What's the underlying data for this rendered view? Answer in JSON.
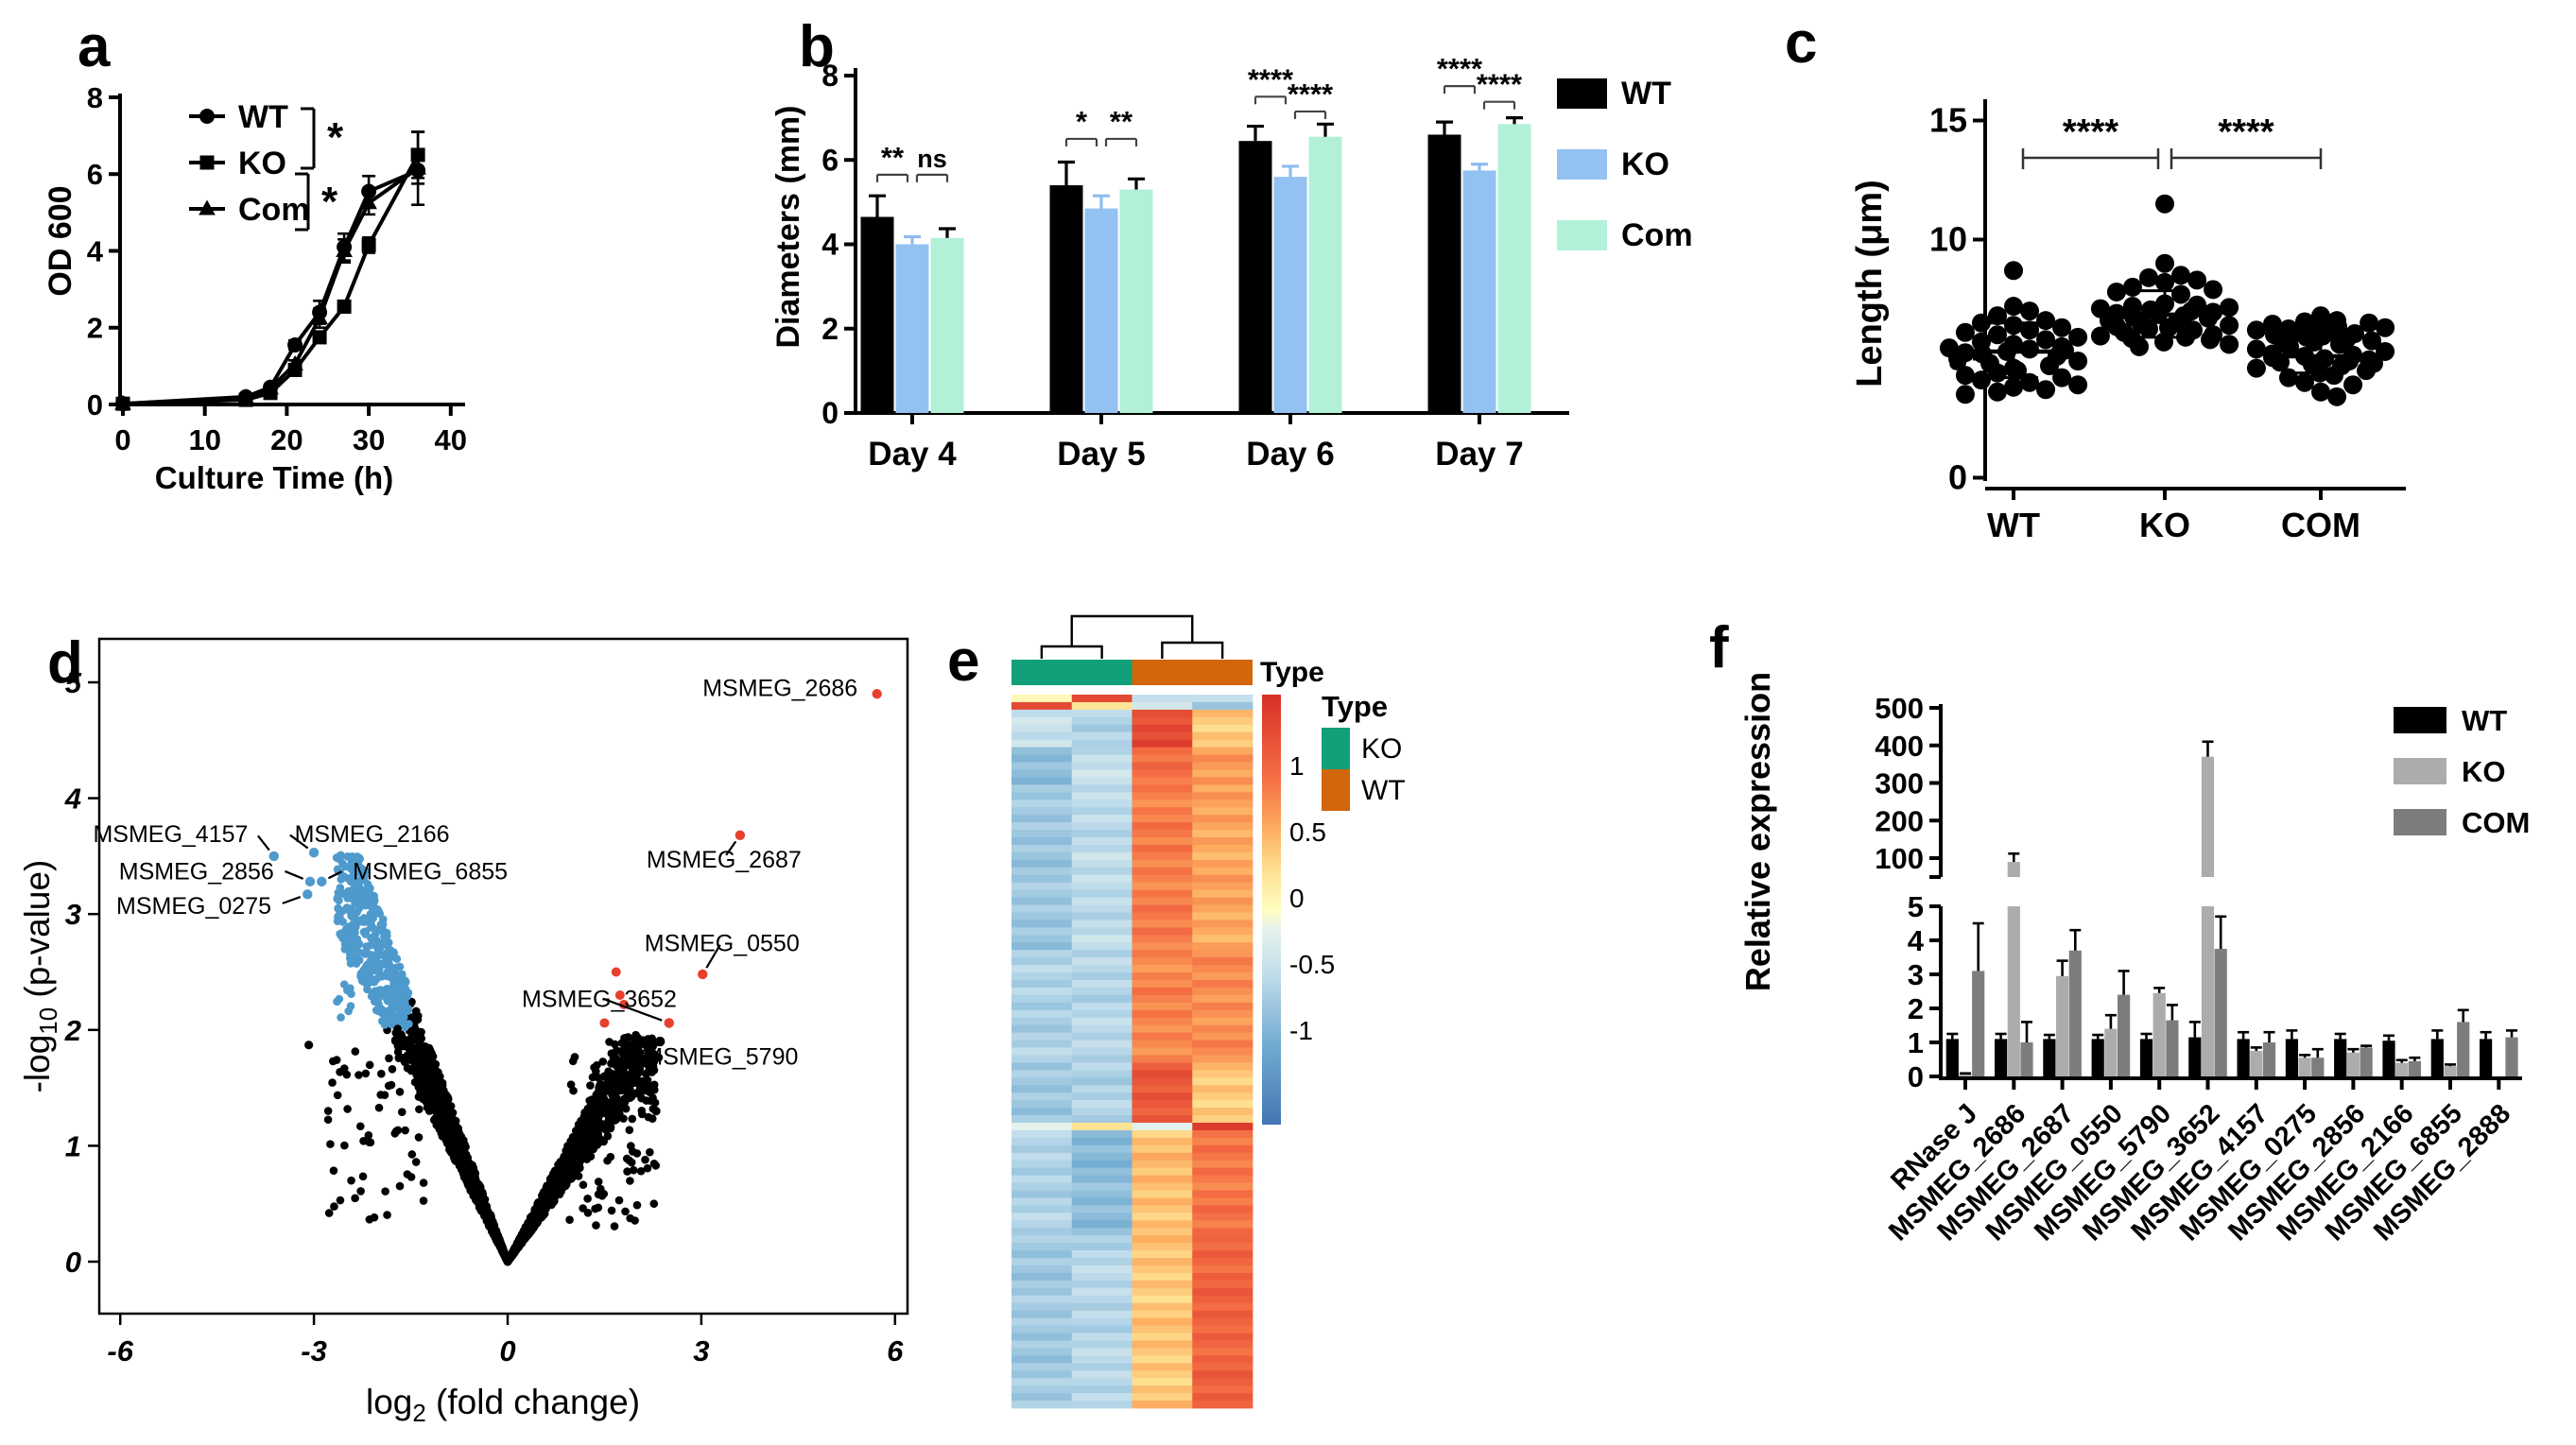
{
  "figure": {
    "background": "#ffffff",
    "panels": {
      "a": {
        "letter": "a"
      },
      "b": {
        "letter": "b"
      },
      "c": {
        "letter": "c"
      },
      "d": {
        "letter": "d"
      },
      "e": {
        "letter": "e"
      },
      "f": {
        "letter": "f"
      }
    }
  },
  "chart_data": {
    "a": {
      "type": "line",
      "xlabel": "Culture Time (h)",
      "ylabel": "OD 600",
      "xlim": [
        0,
        41
      ],
      "ylim": [
        0,
        8
      ],
      "xticks": [
        0,
        10,
        20,
        30,
        40
      ],
      "yticks": [
        0,
        2,
        4,
        6,
        8
      ],
      "x": [
        0,
        15,
        18,
        21,
        24,
        27,
        30,
        36
      ],
      "series": [
        {
          "name": "WT",
          "marker": "circle",
          "color": "#000000",
          "values": [
            0.02,
            0.2,
            0.45,
            1.55,
            2.4,
            4.1,
            5.55,
            6.1
          ],
          "errors": [
            0,
            0.04,
            0.06,
            0.12,
            0.3,
            0.35,
            0.4,
            0.35
          ]
        },
        {
          "name": "KO",
          "marker": "square",
          "color": "#000000",
          "values": [
            0.02,
            0.12,
            0.3,
            0.9,
            1.75,
            2.55,
            4.15,
            6.5
          ],
          "errors": [
            0,
            0.03,
            0.05,
            0.08,
            0.12,
            0.15,
            0.2,
            0.6
          ]
        },
        {
          "name": "Com",
          "marker": "triangle",
          "color": "#000000",
          "values": [
            0.02,
            0.18,
            0.42,
            1.05,
            2.25,
            4.0,
            5.25,
            6.15
          ],
          "errors": [
            0,
            0.04,
            0.05,
            0.1,
            0.25,
            0.3,
            0.3,
            0.95
          ]
        }
      ],
      "legend_significance": [
        {
          "pair": [
            "WT",
            "KO"
          ],
          "label": "*"
        },
        {
          "pair": [
            "KO",
            "Com"
          ],
          "label": "*"
        }
      ]
    },
    "b": {
      "type": "bar",
      "ylabel": "Diameters (mm)",
      "ylim": [
        0,
        8
      ],
      "yticks": [
        0,
        2,
        4,
        6,
        8
      ],
      "categories": [
        "Day 4",
        "Day 5",
        "Day 6",
        "Day 7"
      ],
      "series": [
        {
          "name": "WT",
          "color": "#000000",
          "errorColor": "#000000",
          "values": [
            4.65,
            5.4,
            6.45,
            6.6
          ],
          "errors": [
            0.5,
            0.55,
            0.35,
            0.3
          ]
        },
        {
          "name": "KO",
          "color": "#93C1F2",
          "errorColor": "#8FBCEE",
          "values": [
            4.0,
            4.85,
            5.6,
            5.75
          ],
          "errors": [
            0.18,
            0.3,
            0.25,
            0.15
          ]
        },
        {
          "name": "Com",
          "color": "#B2F1D7",
          "errorColor": "#000000",
          "values": [
            4.15,
            5.3,
            6.55,
            6.85
          ],
          "errors": [
            0.22,
            0.25,
            0.3,
            0.15
          ]
        }
      ],
      "significance": [
        {
          "wt_ko": "**",
          "ko_com": "ns",
          "h1": 5.65,
          "h2": 5.65
        },
        {
          "wt_ko": "*",
          "ko_com": "**",
          "h1": 6.5,
          "h2": 6.5
        },
        {
          "wt_ko": "****",
          "ko_com": "****",
          "h1": 7.5,
          "h2": 7.15
        },
        {
          "wt_ko": "****",
          "ko_com": "****",
          "h1": 7.75,
          "h2": 7.38
        }
      ]
    },
    "c": {
      "type": "scatter",
      "ylabel": "Length (μm)",
      "ylim": [
        0,
        15
      ],
      "yticks": [
        0,
        5,
        10,
        15
      ],
      "categories": [
        "WT",
        "KO",
        "COM"
      ],
      "points": {
        "WT": [
          8.7,
          7.2,
          7.0,
          6.8,
          6.6,
          6.5,
          6.4,
          6.3,
          6.2,
          6.1,
          6.0,
          5.9,
          5.8,
          5.7,
          5.6,
          5.5,
          5.45,
          5.4,
          5.35,
          5.3,
          5.25,
          5.2,
          5.1,
          5.0,
          4.9,
          4.8,
          4.7,
          4.6,
          4.5,
          4.4,
          4.3,
          4.2,
          4.1,
          4.0,
          3.9,
          3.8,
          3.7,
          3.6,
          3.5
        ],
        "KO": [
          11.5,
          9.0,
          8.5,
          8.4,
          8.3,
          8.2,
          8.0,
          7.9,
          7.8,
          7.7,
          7.3,
          7.25,
          7.2,
          7.15,
          7.1,
          7.05,
          7.0,
          6.95,
          6.9,
          6.85,
          6.8,
          6.75,
          6.7,
          6.6,
          6.5,
          6.45,
          6.4,
          6.35,
          6.3,
          6.25,
          6.2,
          6.1,
          6.0,
          5.95,
          5.9,
          5.85,
          5.8,
          5.7,
          5.6,
          5.5
        ],
        "COM": [
          6.8,
          6.6,
          6.55,
          6.5,
          6.45,
          6.4,
          6.35,
          6.3,
          6.25,
          6.2,
          6.15,
          6.1,
          6.05,
          6.0,
          5.95,
          5.9,
          5.85,
          5.8,
          5.75,
          5.7,
          5.6,
          5.5,
          5.4,
          5.3,
          5.2,
          5.15,
          5.1,
          5.05,
          5.0,
          4.95,
          4.9,
          4.85,
          4.8,
          4.75,
          4.7,
          4.6,
          4.5,
          4.4,
          4.3,
          4.2,
          4.0,
          3.9,
          3.6,
          3.4
        ]
      },
      "mean_sd": {
        "WT": [
          5.3,
          6.5,
          4.2
        ],
        "KO": [
          6.85,
          7.85,
          5.9
        ],
        "COM": [
          5.1,
          5.8,
          4.4
        ]
      },
      "significance": [
        {
          "pair": [
            "WT",
            "KO"
          ],
          "label": "****"
        },
        {
          "pair": [
            "KO",
            "COM"
          ],
          "label": "****"
        }
      ]
    },
    "d": {
      "type": "scatter",
      "variant": "volcano",
      "xlabel_parts": [
        "log",
        "2",
        " (fold change)"
      ],
      "ylabel_parts": [
        "-log",
        "10",
        " (p-value)"
      ],
      "xticks": [
        -6,
        -3,
        0,
        3,
        6
      ],
      "yticks": [
        0,
        1,
        2,
        3,
        4,
        5
      ],
      "colors": {
        "up": "#E8402C",
        "down": "#4E9ACD",
        "ns": "#000000"
      },
      "labeled_points": [
        {
          "gene": "MSMEG_2686",
          "x": 5.72,
          "y": 4.9,
          "color": "#E8402C",
          "label": [
            5.42,
            4.88
          ],
          "anchor": "end",
          "leader": false
        },
        {
          "gene": "MSMEG_2687",
          "x": 3.6,
          "y": 3.68,
          "color": "#E8402C",
          "label": [
            3.35,
            3.4
          ],
          "anchor": "middle",
          "leader": true
        },
        {
          "gene": "MSMEG_0550",
          "x": 3.02,
          "y": 2.48,
          "color": "#E8402C",
          "label": [
            3.32,
            2.68
          ],
          "anchor": "middle",
          "leader": true
        },
        {
          "gene": "MSMEG_3652",
          "x": 2.5,
          "y": 2.06,
          "color": "#E8402C",
          "label": [
            1.42,
            2.2
          ],
          "anchor": "middle",
          "leader": true
        },
        {
          "gene": "MSMEG_5790",
          "x": 2.36,
          "y": 1.9,
          "color": "#000000",
          "label": [
            2.1,
            1.7
          ],
          "anchor": "start",
          "leader": true
        },
        {
          "gene": "MSMEG_4157",
          "x": -3.62,
          "y": 3.5,
          "color": "#4E9ACD",
          "label": [
            -4.02,
            3.62
          ],
          "anchor": "end",
          "leader": true
        },
        {
          "gene": "MSMEG_2166",
          "x": -3.0,
          "y": 3.53,
          "color": "#4E9ACD",
          "label": [
            -3.3,
            3.62
          ],
          "anchor": "start",
          "leader": true
        },
        {
          "gene": "MSMEG_2856",
          "x": -3.06,
          "y": 3.28,
          "color": "#4E9ACD",
          "label": [
            -3.62,
            3.3
          ],
          "anchor": "end",
          "leader": true
        },
        {
          "gene": "MSMEG_6855",
          "x": -2.88,
          "y": 3.28,
          "color": "#4E9ACD",
          "label": [
            -2.4,
            3.3
          ],
          "anchor": "start",
          "leader": true
        },
        {
          "gene": "MSMEG_0275",
          "x": -3.1,
          "y": 3.17,
          "color": "#4E9ACD",
          "label": [
            -3.66,
            3.0
          ],
          "anchor": "end",
          "leader": true
        }
      ],
      "extra_red_points": [
        [
          1.68,
          2.5
        ],
        [
          1.74,
          2.3
        ],
        [
          1.8,
          2.22
        ],
        [
          1.5,
          2.06
        ]
      ],
      "extra_black_points": [
        [
          -3.08,
          1.87
        ],
        [
          2.3,
          1.3
        ]
      ],
      "cloud": {
        "seed": 7,
        "n_left": 1500,
        "n_right": 1150,
        "n_fringe_left": 60,
        "n_fringe_right": 90,
        "left_x_max": 2.65,
        "right_x_max": 2.3,
        "left_slope": 1.3,
        "right_slope": 0.9,
        "blue_rule": {
          "x_max": -1.52,
          "y_min": 2.02
        }
      }
    },
    "e": {
      "type": "heatmap",
      "annotation": {
        "title": "Type",
        "groups": [
          {
            "name": "KO",
            "color": "#11A079",
            "cols": [
              0,
              1
            ]
          },
          {
            "name": "WT",
            "color": "#D2660A",
            "cols": [
              2,
              3
            ]
          }
        ]
      },
      "legend": {
        "title": "Type",
        "entries": [
          {
            "label": "KO",
            "color": "#11A079"
          },
          {
            "label": "WT",
            "color": "#D2660A"
          }
        ]
      },
      "colorbar": {
        "ticks": [
          1,
          0.5,
          0,
          -0.5,
          -1
        ],
        "range": [
          -1.62,
          1.62
        ]
      },
      "colormap_stops": [
        [
          -1.62,
          "#4575B4"
        ],
        [
          -1.0,
          "#74ADD1"
        ],
        [
          -0.5,
          "#BFDCEB"
        ],
        [
          -0.15,
          "#E6F3EC"
        ],
        [
          0,
          "#FFFDC0"
        ],
        [
          0.3,
          "#FEE090"
        ],
        [
          0.6,
          "#FDAE61"
        ],
        [
          1.0,
          "#F46D43"
        ],
        [
          1.62,
          "#D73027"
        ]
      ],
      "bands": [
        {
          "n": 1,
          "v": [
            0.2,
            1.35,
            -0.35,
            -0.5
          ]
        },
        {
          "n": 1,
          "v": [
            1.3,
            0.35,
            -0.4,
            -0.7
          ]
        },
        {
          "n": 5,
          "v": [
            -0.45,
            -0.6,
            1.35,
            0.4
          ]
        },
        {
          "n": 5,
          "v": [
            -0.8,
            -0.45,
            1.0,
            0.75
          ]
        },
        {
          "n": 22,
          "v": [
            -0.72,
            -0.5,
            0.9,
            0.65
          ]
        },
        {
          "n": 15,
          "v": [
            -0.62,
            -0.55,
            0.85,
            0.8
          ]
        },
        {
          "n": 8,
          "v": [
            -0.7,
            -0.6,
            1.2,
            0.45
          ]
        },
        {
          "n": 1,
          "v": [
            -0.1,
            0.15,
            -0.15,
            1.35
          ]
        },
        {
          "n": 14,
          "v": [
            -0.6,
            -0.85,
            0.5,
            0.95
          ]
        },
        {
          "n": 23,
          "v": [
            -0.7,
            -0.55,
            0.45,
            1.1
          ]
        }
      ]
    },
    "f": {
      "type": "bar",
      "variant": "broken-axis",
      "ylabel": "Relative expression",
      "upper_ticks": [
        500,
        400,
        300,
        200,
        100
      ],
      "lower_ticks": [
        5,
        4,
        3,
        2,
        1,
        0
      ],
      "axis_break": {
        "lower_max": 5,
        "upper_min": 60,
        "upper_max": 500
      },
      "categories": [
        "RNase J",
        "MSMEG_2686",
        "MSMEG_2687",
        "MSMEG_0550",
        "MSMEG_5790",
        "MSMEG_3652",
        "MSMEG_4157",
        "MSMEG_0275",
        "MSMEG_2856",
        "MSMEG_2166",
        "MSMEG_6855",
        "MSMEG_2888"
      ],
      "series": [
        {
          "name": "WT",
          "color": "#000000",
          "values": [
            1.1,
            1.1,
            1.1,
            1.1,
            1.1,
            1.15,
            1.1,
            1.1,
            1.1,
            1.05,
            1.1,
            1.1
          ],
          "errors": [
            0.15,
            0.15,
            0.12,
            0.12,
            0.15,
            0.45,
            0.2,
            0.25,
            0.15,
            0.15,
            0.25,
            0.2
          ]
        },
        {
          "name": "KO",
          "color": "#ACACAC",
          "values": [
            0.06,
            90,
            2.95,
            1.4,
            2.45,
            370,
            0.75,
            0.55,
            0.7,
            0.4,
            0.3,
            0
          ],
          "errors": [
            0.03,
            22,
            0.45,
            0.4,
            0.15,
            40,
            0.1,
            0.08,
            0.1,
            0.08,
            0.05,
            0
          ]
        },
        {
          "name": "COM",
          "color": "#7D7D7D",
          "values": [
            3.1,
            1.0,
            3.7,
            2.4,
            1.65,
            3.75,
            1.0,
            0.55,
            0.85,
            0.45,
            1.6,
            1.15
          ],
          "errors": [
            1.4,
            0.6,
            0.6,
            0.7,
            0.45,
            0.95,
            0.3,
            0.25,
            0.05,
            0.1,
            0.35,
            0.2
          ]
        }
      ]
    }
  }
}
